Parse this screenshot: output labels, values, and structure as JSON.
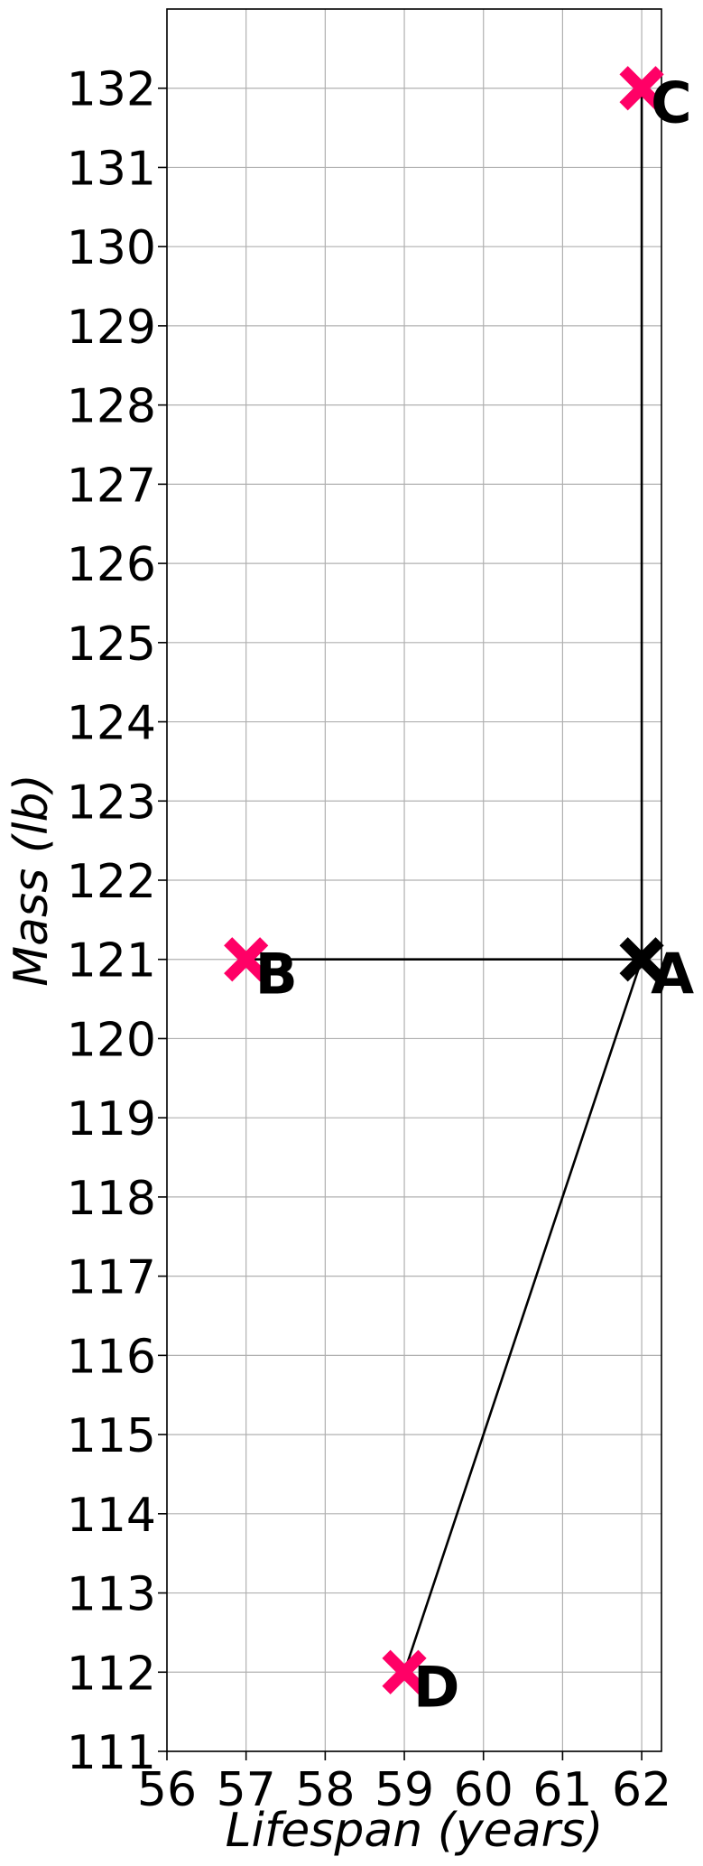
{
  "chart_data": {
    "type": "scatter",
    "xlabel": "Lifespan (years)",
    "ylabel": "Mass (lb)",
    "xlim": [
      56,
      62.25
    ],
    "ylim": [
      111,
      133
    ],
    "xticks": [
      56,
      57,
      58,
      59,
      60,
      61,
      62
    ],
    "yticks": [
      111,
      112,
      113,
      114,
      115,
      116,
      117,
      118,
      119,
      120,
      121,
      122,
      123,
      124,
      125,
      126,
      127,
      128,
      129,
      130,
      131,
      132
    ],
    "grid": true,
    "points": [
      {
        "label": "A",
        "x": 62,
        "y": 121,
        "color": "#000000",
        "marker": "x"
      },
      {
        "label": "B",
        "x": 57,
        "y": 121,
        "color": "#ff0066",
        "marker": "x"
      },
      {
        "label": "C",
        "x": 62,
        "y": 132,
        "color": "#ff0066",
        "marker": "x"
      },
      {
        "label": "D",
        "x": 59,
        "y": 112,
        "color": "#ff0066",
        "marker": "x"
      }
    ],
    "connections": [
      [
        "A",
        "B"
      ],
      [
        "A",
        "C"
      ],
      [
        "A",
        "D"
      ]
    ]
  }
}
